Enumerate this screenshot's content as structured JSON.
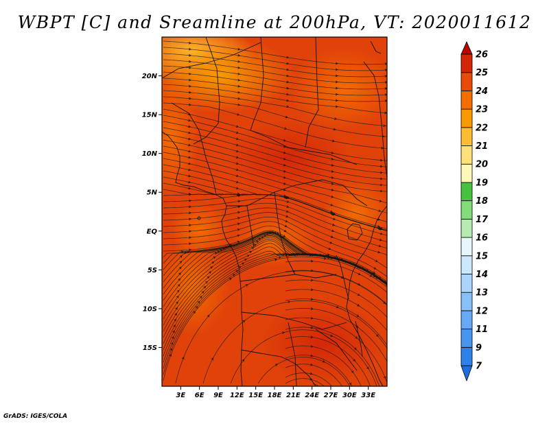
{
  "title": "WBPT [C] and Sreamline at 200hPa, VT: 2020011612",
  "credit": "GrADS: IGES/COLA",
  "map": {
    "lat_range": [
      -20,
      25
    ],
    "lon_range": [
      0,
      36
    ],
    "lat_ticks": [
      {
        "value": 20,
        "label": "20N"
      },
      {
        "value": 15,
        "label": "15N"
      },
      {
        "value": 10,
        "label": "10N"
      },
      {
        "value": 5,
        "label": "5N"
      },
      {
        "value": 0,
        "label": "EQ"
      },
      {
        "value": -5,
        "label": "5S"
      },
      {
        "value": -10,
        "label": "10S"
      },
      {
        "value": -15,
        "label": "15S"
      }
    ],
    "lon_ticks": [
      {
        "value": 3,
        "label": "3E"
      },
      {
        "value": 6,
        "label": "6E"
      },
      {
        "value": 9,
        "label": "9E"
      },
      {
        "value": 12,
        "label": "12E"
      },
      {
        "value": 15,
        "label": "15E"
      },
      {
        "value": 18,
        "label": "18E"
      },
      {
        "value": 21,
        "label": "21E"
      },
      {
        "value": 24,
        "label": "24E"
      },
      {
        "value": 27,
        "label": "27E"
      },
      {
        "value": 30,
        "label": "30E"
      },
      {
        "value": 33,
        "label": "33E"
      }
    ]
  },
  "colorbar": {
    "levels": [
      "7",
      "9",
      "11",
      "12",
      "13",
      "14",
      "15",
      "16",
      "17",
      "18",
      "19",
      "20",
      "21",
      "22",
      "23",
      "24",
      "25",
      "26"
    ],
    "colors": [
      "#1e6ee0",
      "#2f82ea",
      "#4895f0",
      "#66aaf4",
      "#88c0f8",
      "#aad4fa",
      "#cce8fc",
      "#e6f6fa",
      "#b6eab0",
      "#82dc7a",
      "#48c040",
      "#fff8b8",
      "#ffe17a",
      "#fdbc34",
      "#f89a00",
      "#f36e00",
      "#e84a08",
      "#d32608",
      "#b50800"
    ]
  }
}
